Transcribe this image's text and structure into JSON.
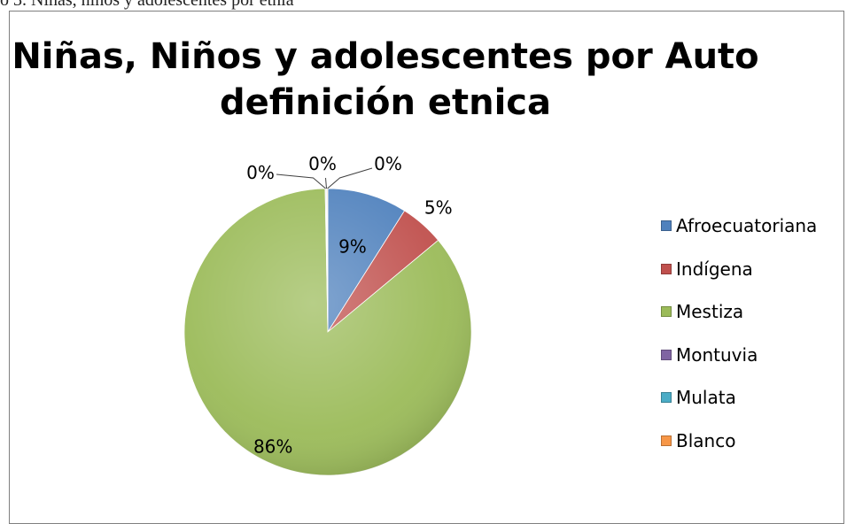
{
  "caption": "o 3. Niñas, niños y adolescentes por etnia",
  "chart_data": {
    "type": "pie",
    "title": "Niñas, Niños y adolescentes  por Auto definición etnica",
    "title_lines": [
      "Niñas, Niños y adolescentes  por Auto",
      "definición etnica"
    ],
    "categories": [
      "Afroecuatoriana",
      "Indígena",
      "Mestiza",
      "Montuvia",
      "Mulata",
      "Blanco"
    ],
    "values": [
      9,
      5,
      86,
      0,
      0,
      0
    ],
    "data_labels": [
      "9%",
      "5%",
      "86%",
      "0%",
      "0%",
      "0%"
    ],
    "colors": [
      "#4f81bd",
      "#c0504d",
      "#9bbb59",
      "#8064a2",
      "#4bacc6",
      "#f79646"
    ],
    "legend_position": "right"
  }
}
